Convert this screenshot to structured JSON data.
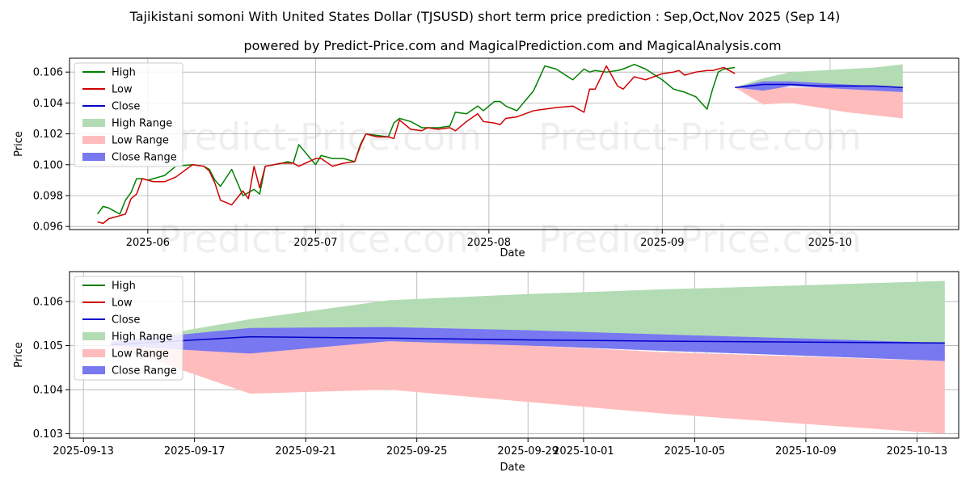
{
  "title": "Tajikistani somoni With United States Dollar (TJSUSD) short term price prediction : Sep,Oct,Nov 2025 (Sep 14)",
  "subtitle": "powered by Predict-Price.com and MagicalPrediction.com and MagicalAnalysis.com",
  "watermark": "Predict-Price.com",
  "colors": {
    "high": "#008000",
    "low": "#d00000",
    "close": "#0000c8",
    "high_range": "#b4dcb4",
    "low_range": "#ffbcbc",
    "close_range": "#7878f0"
  },
  "chart_data": [
    {
      "type": "line",
      "xlabel": "Date",
      "ylabel": "Price",
      "xlim": [
        "2025-05-18",
        "2025-10-24"
      ],
      "ylim": [
        0.0958,
        0.1069
      ],
      "grid": true,
      "legend_position": "upper-left",
      "legend": [
        "High",
        "Low",
        "Close",
        "High Range",
        "Low Range",
        "Close Range"
      ],
      "xticks": [
        {
          "date": "2025-06-01",
          "label": "2025-06"
        },
        {
          "date": "2025-07-01",
          "label": "2025-07"
        },
        {
          "date": "2025-08-01",
          "label": "2025-08"
        },
        {
          "date": "2025-09-01",
          "label": "2025-09"
        },
        {
          "date": "2025-10-01",
          "label": "2025-10"
        }
      ],
      "yticks": [
        {
          "value": 0.096,
          "label": "0.096"
        },
        {
          "value": 0.098,
          "label": "0.098"
        },
        {
          "value": 0.1,
          "label": "0.100"
        },
        {
          "value": 0.102,
          "label": "0.102"
        },
        {
          "value": 0.104,
          "label": "0.104"
        },
        {
          "value": 0.106,
          "label": "0.106"
        }
      ],
      "series": [
        {
          "name": "High",
          "x": [
            "2025-05-23",
            "2025-05-24",
            "2025-05-25",
            "2025-05-26",
            "2025-05-27",
            "2025-05-28",
            "2025-05-29",
            "2025-05-30",
            "2025-05-31",
            "2025-06-01",
            "2025-06-02",
            "2025-06-03",
            "2025-06-04",
            "2025-06-06",
            "2025-06-09",
            "2025-06-11",
            "2025-06-12",
            "2025-06-13",
            "2025-06-14",
            "2025-06-16",
            "2025-06-18",
            "2025-06-19",
            "2025-06-20",
            "2025-06-21",
            "2025-06-22",
            "2025-06-25",
            "2025-06-26",
            "2025-06-27",
            "2025-06-28",
            "2025-07-01",
            "2025-07-02",
            "2025-07-04",
            "2025-07-06",
            "2025-07-08",
            "2025-07-09",
            "2025-07-10",
            "2025-07-12",
            "2025-07-14",
            "2025-07-15",
            "2025-07-16",
            "2025-07-18",
            "2025-07-20",
            "2025-07-21",
            "2025-07-23",
            "2025-07-25",
            "2025-07-26",
            "2025-07-28",
            "2025-07-30",
            "2025-07-31",
            "2025-08-02",
            "2025-08-03",
            "2025-08-04",
            "2025-08-06",
            "2025-08-09",
            "2025-08-11",
            "2025-08-13",
            "2025-08-16",
            "2025-08-18",
            "2025-08-19",
            "2025-08-20",
            "2025-08-22",
            "2025-08-24",
            "2025-08-25",
            "2025-08-27",
            "2025-08-29",
            "2025-09-01",
            "2025-09-03",
            "2025-09-04",
            "2025-09-05",
            "2025-09-07",
            "2025-09-09",
            "2025-09-10",
            "2025-09-11",
            "2025-09-12",
            "2025-09-14"
          ],
          "values": [
            0.0968,
            0.0973,
            0.0972,
            0.097,
            0.0968,
            0.0977,
            0.0982,
            0.0991,
            0.0991,
            0.099,
            0.0991,
            0.0992,
            0.0993,
            0.0999,
            0.1,
            0.0999,
            0.0997,
            0.099,
            0.0986,
            0.0997,
            0.098,
            0.0982,
            0.0984,
            0.0981,
            0.0999,
            0.1001,
            0.1002,
            0.1001,
            0.1013,
            0.1,
            0.1006,
            0.1004,
            0.1004,
            0.1002,
            0.1013,
            0.102,
            0.1019,
            0.1018,
            0.1027,
            0.103,
            0.1028,
            0.1024,
            0.1024,
            0.1024,
            0.1025,
            0.1034,
            0.1033,
            0.1038,
            0.1035,
            0.1041,
            0.1041,
            0.1038,
            0.1035,
            0.1048,
            0.1064,
            0.1062,
            0.1055,
            0.1062,
            0.106,
            0.1061,
            0.106,
            0.1061,
            0.1062,
            0.1065,
            0.1062,
            0.1055,
            0.1049,
            0.1048,
            0.1047,
            0.1044,
            0.1036,
            0.1049,
            0.106,
            0.1062,
            0.1063
          ]
        },
        {
          "name": "Low",
          "x": [
            "2025-05-23",
            "2025-05-24",
            "2025-05-25",
            "2025-05-26",
            "2025-05-27",
            "2025-05-28",
            "2025-05-29",
            "2025-05-30",
            "2025-05-31",
            "2025-06-01",
            "2025-06-02",
            "2025-06-03",
            "2025-06-04",
            "2025-06-06",
            "2025-06-09",
            "2025-06-11",
            "2025-06-12",
            "2025-06-13",
            "2025-06-14",
            "2025-06-16",
            "2025-06-18",
            "2025-06-19",
            "2025-06-20",
            "2025-06-21",
            "2025-06-22",
            "2025-06-25",
            "2025-06-26",
            "2025-06-27",
            "2025-06-28",
            "2025-07-01",
            "2025-07-02",
            "2025-07-04",
            "2025-07-06",
            "2025-07-08",
            "2025-07-09",
            "2025-07-10",
            "2025-07-12",
            "2025-07-14",
            "2025-07-15",
            "2025-07-16",
            "2025-07-18",
            "2025-07-20",
            "2025-07-21",
            "2025-07-23",
            "2025-07-25",
            "2025-07-26",
            "2025-07-28",
            "2025-07-30",
            "2025-07-31",
            "2025-08-02",
            "2025-08-03",
            "2025-08-04",
            "2025-08-06",
            "2025-08-09",
            "2025-08-11",
            "2025-08-13",
            "2025-08-16",
            "2025-08-18",
            "2025-08-19",
            "2025-08-20",
            "2025-08-22",
            "2025-08-24",
            "2025-08-25",
            "2025-08-27",
            "2025-08-29",
            "2025-09-01",
            "2025-09-03",
            "2025-09-04",
            "2025-09-05",
            "2025-09-07",
            "2025-09-09",
            "2025-09-10",
            "2025-09-11",
            "2025-09-12",
            "2025-09-14"
          ],
          "values": [
            0.0963,
            0.0962,
            0.0965,
            0.0966,
            0.0967,
            0.0968,
            0.0978,
            0.0981,
            0.0991,
            0.099,
            0.0989,
            0.0989,
            0.0989,
            0.0992,
            0.1,
            0.0999,
            0.0996,
            0.0988,
            0.0977,
            0.0974,
            0.0983,
            0.0978,
            0.0999,
            0.0985,
            0.0999,
            0.1001,
            0.1001,
            0.1001,
            0.0999,
            0.1004,
            0.1004,
            0.0999,
            0.1001,
            0.1002,
            0.1012,
            0.102,
            0.1018,
            0.1018,
            0.1017,
            0.1029,
            0.1023,
            0.1022,
            0.1024,
            0.1023,
            0.1024,
            0.1022,
            0.1028,
            0.1033,
            0.1028,
            0.1027,
            0.1026,
            0.103,
            0.1031,
            0.1035,
            0.1036,
            0.1037,
            0.1038,
            0.1034,
            0.1049,
            0.1049,
            0.1064,
            0.1051,
            0.1049,
            0.1057,
            0.1055,
            0.1059,
            0.106,
            0.1061,
            0.1058,
            0.106,
            0.1061,
            0.1061,
            0.1062,
            0.1063,
            0.1059
          ]
        },
        {
          "name": "Close",
          "x": [
            "2025-09-14",
            "2025-09-19",
            "2025-09-24",
            "2025-09-29",
            "2025-10-04",
            "2025-10-09",
            "2025-10-14"
          ],
          "values": [
            0.105,
            0.1052,
            0.1052,
            0.1051,
            0.1051,
            0.1051,
            0.105
          ]
        },
        {
          "name": "High Range",
          "x": [
            "2025-09-14",
            "2025-09-19",
            "2025-09-24",
            "2025-09-29",
            "2025-10-04",
            "2025-10-09",
            "2025-10-14"
          ],
          "upper": [
            0.105,
            0.1056,
            0.106,
            0.1061,
            0.1062,
            0.1063,
            0.1065
          ],
          "lower": [
            0.105,
            0.1052,
            0.1052,
            0.1051,
            0.1051,
            0.1051,
            0.105
          ]
        },
        {
          "name": "Low Range",
          "x": [
            "2025-09-14",
            "2025-09-19",
            "2025-09-24",
            "2025-09-29",
            "2025-10-04",
            "2025-10-09",
            "2025-10-14"
          ],
          "upper": [
            0.105,
            0.105,
            0.105,
            0.105,
            0.105,
            0.1048,
            0.1047
          ],
          "lower": [
            0.105,
            0.1039,
            0.104,
            0.1037,
            0.1034,
            0.1032,
            0.103
          ]
        },
        {
          "name": "Close Range",
          "x": [
            "2025-09-14",
            "2025-09-19",
            "2025-09-24",
            "2025-09-29",
            "2025-10-04",
            "2025-10-09",
            "2025-10-14"
          ],
          "upper": [
            0.105,
            0.1054,
            0.1054,
            0.1053,
            0.1052,
            0.1051,
            0.105
          ],
          "lower": [
            0.105,
            0.1048,
            0.1051,
            0.105,
            0.1049,
            0.1048,
            0.1047
          ]
        }
      ]
    },
    {
      "type": "line",
      "xlabel": "Date",
      "ylabel": "Price",
      "xlim": [
        "2025-09-12.5",
        "2025-10-14.5"
      ],
      "ylim": [
        0.1029,
        0.10668
      ],
      "grid": true,
      "legend_position": "upper-left",
      "legend": [
        "High",
        "Low",
        "Close",
        "High Range",
        "Low Range",
        "Close Range"
      ],
      "xticks": [
        {
          "date": "2025-09-13",
          "label": "2025-09-13"
        },
        {
          "date": "2025-09-17",
          "label": "2025-09-17"
        },
        {
          "date": "2025-09-21",
          "label": "2025-09-21"
        },
        {
          "date": "2025-09-25",
          "label": "2025-09-25"
        },
        {
          "date": "2025-09-29",
          "label": "2025-09-29"
        },
        {
          "date": "2025-10-01",
          "label": "2025-10-01"
        },
        {
          "date": "2025-10-05",
          "label": "2025-10-05"
        },
        {
          "date": "2025-10-09",
          "label": "2025-10-09"
        },
        {
          "date": "2025-10-13",
          "label": "2025-10-13"
        }
      ],
      "yticks": [
        {
          "value": 0.103,
          "label": "0.103"
        },
        {
          "value": 0.104,
          "label": "0.104"
        },
        {
          "value": 0.105,
          "label": "0.105"
        },
        {
          "value": 0.106,
          "label": "0.106"
        }
      ],
      "series": [
        {
          "name": "Close",
          "x": [
            "2025-09-14",
            "2025-09-19",
            "2025-09-24",
            "2025-09-29",
            "2025-10-04",
            "2025-10-09",
            "2025-10-14"
          ],
          "values": [
            0.10502,
            0.1052,
            0.10517,
            0.10513,
            0.1051,
            0.10508,
            0.10506
          ]
        },
        {
          "name": "High Range",
          "x": [
            "2025-09-14",
            "2025-09-19",
            "2025-09-24",
            "2025-09-29",
            "2025-10-04",
            "2025-10-09",
            "2025-10-14"
          ],
          "upper": [
            0.10505,
            0.1056,
            0.10603,
            0.10617,
            0.10628,
            0.10637,
            0.10647
          ],
          "lower": [
            0.10502,
            0.1052,
            0.10517,
            0.10513,
            0.1051,
            0.10508,
            0.10506
          ]
        },
        {
          "name": "Low Range",
          "x": [
            "2025-09-14",
            "2025-09-19",
            "2025-09-24",
            "2025-09-29",
            "2025-10-04",
            "2025-10-09",
            "2025-10-14"
          ],
          "upper": [
            0.105,
            0.1049,
            0.10515,
            0.105,
            0.10485,
            0.10475,
            0.10465
          ],
          "lower": [
            0.105,
            0.10391,
            0.104,
            0.10372,
            0.10345,
            0.10322,
            0.103
          ]
        },
        {
          "name": "Close Range",
          "x": [
            "2025-09-14",
            "2025-09-19",
            "2025-09-24",
            "2025-09-29",
            "2025-10-04",
            "2025-10-09",
            "2025-10-14"
          ],
          "upper": [
            0.1051,
            0.1054,
            0.10542,
            0.10535,
            0.10525,
            0.10516,
            0.10506
          ],
          "lower": [
            0.105,
            0.10482,
            0.1051,
            0.105,
            0.10488,
            0.10477,
            0.10465
          ]
        }
      ]
    }
  ]
}
